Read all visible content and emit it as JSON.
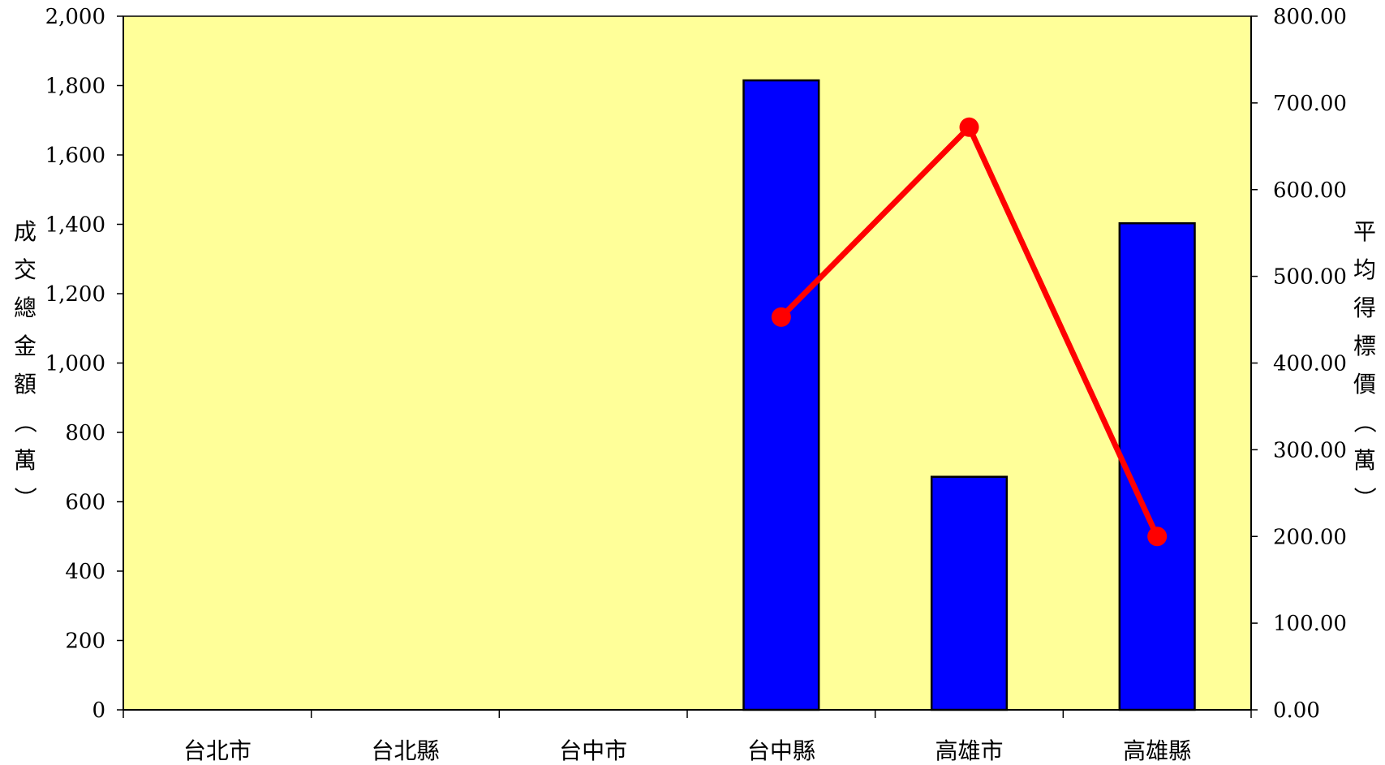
{
  "chart_data": {
    "type": "bar",
    "categories": [
      "台北市",
      "台北縣",
      "台中市",
      "台中縣",
      "高雄市",
      "高雄縣"
    ],
    "series": [
      {
        "type": "bar",
        "axis": "left",
        "color": "#0000ff",
        "values": [
          0,
          0,
          0,
          1815,
          672,
          1403
        ]
      },
      {
        "type": "line",
        "axis": "right",
        "color": "#ff0000",
        "values": [
          null,
          null,
          null,
          453,
          672,
          200
        ]
      }
    ],
    "ylabel": "成交總金額（萬）",
    "ylabel_right": "平均得標價（萬）",
    "ylim": [
      0,
      2000
    ],
    "ylim_right": [
      0,
      800
    ],
    "yticks": [
      "0",
      "200",
      "400",
      "600",
      "800",
      "1,000",
      "1,200",
      "1,400",
      "1,600",
      "1,800",
      "2,000"
    ],
    "yticks_right": [
      "0.00",
      "100.00",
      "200.00",
      "300.00",
      "400.00",
      "500.00",
      "600.00",
      "700.00",
      "800.00"
    ],
    "plot_background": "#ffff99",
    "grid": false,
    "legend": "none"
  }
}
